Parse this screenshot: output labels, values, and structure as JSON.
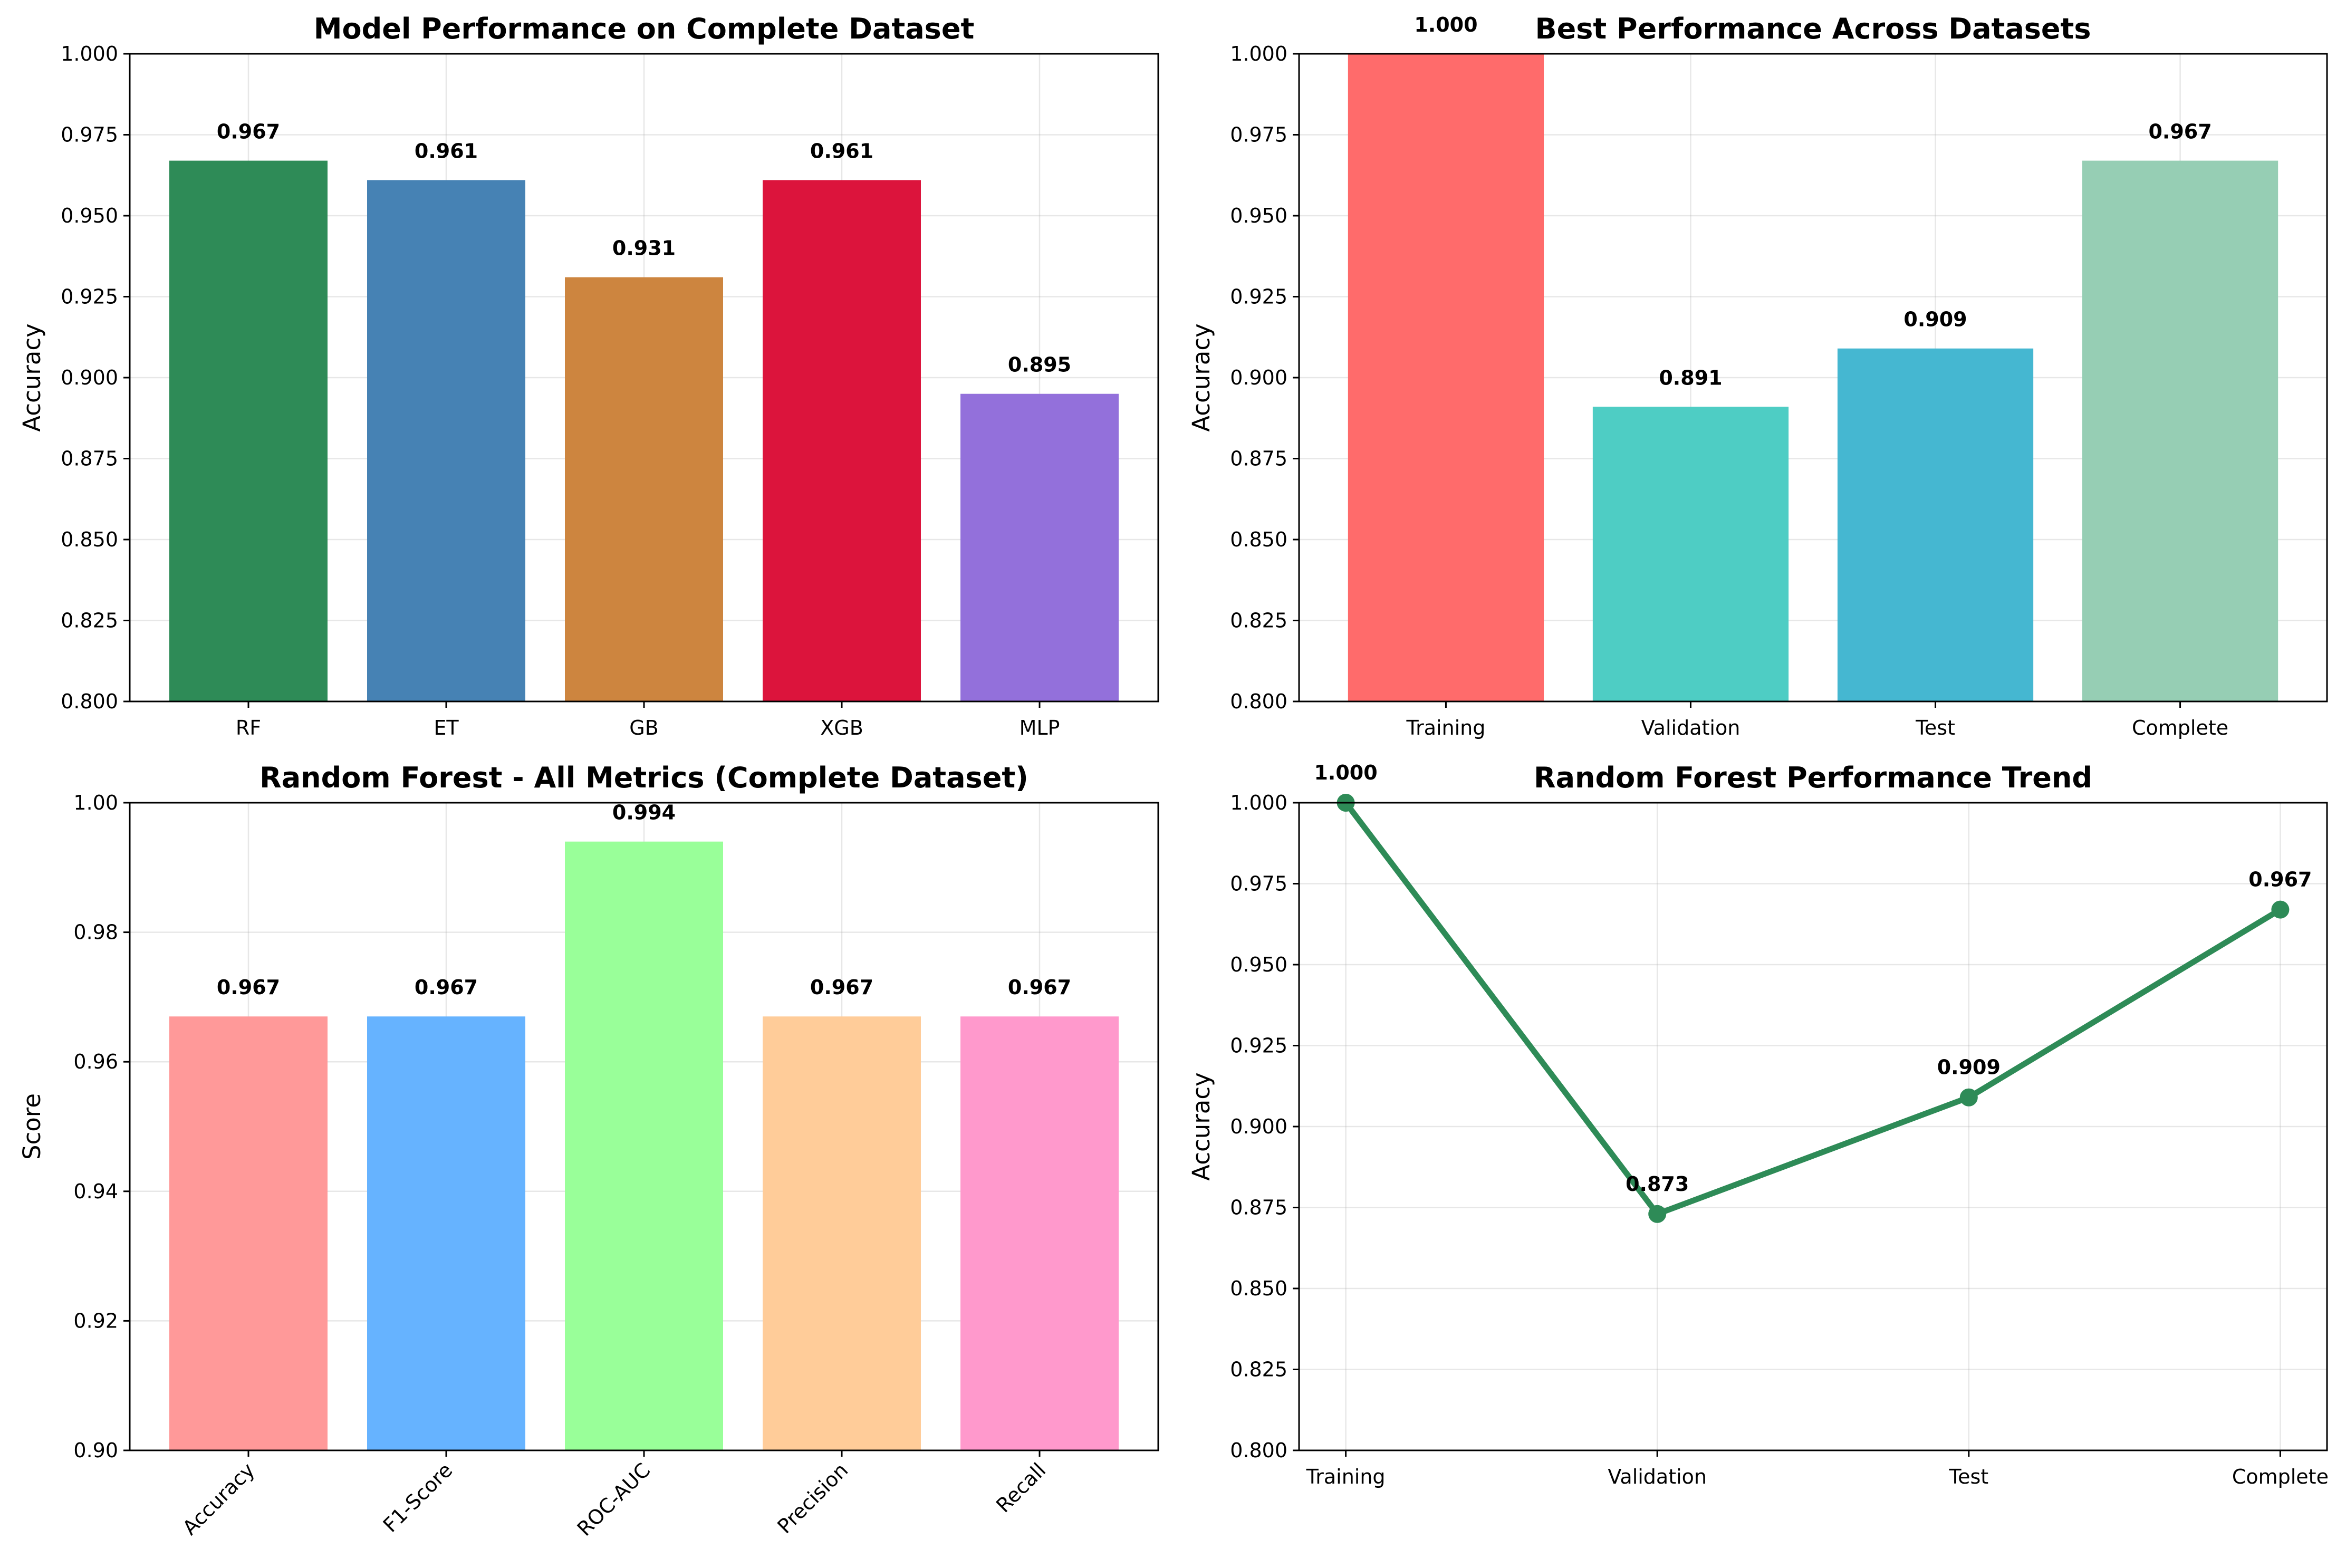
{
  "chart_data": [
    {
      "type": "bar",
      "title": "Model Performance on Complete Dataset",
      "xlabel": "",
      "ylabel": "Accuracy",
      "ylim": [
        0.8,
        1.0
      ],
      "yticks": [
        "0.800",
        "0.825",
        "0.850",
        "0.875",
        "0.900",
        "0.925",
        "0.950",
        "0.975",
        "1.000"
      ],
      "categories": [
        "RF",
        "ET",
        "GB",
        "XGB",
        "MLP"
      ],
      "values": [
        0.967,
        0.961,
        0.931,
        0.961,
        0.895
      ],
      "labels": [
        "0.967",
        "0.961",
        "0.931",
        "0.961",
        "0.895"
      ],
      "colors": [
        "#2e8b57",
        "#4682b4",
        "#cd853f",
        "#dc143c",
        "#9370db"
      ],
      "grid": true,
      "legend": "none"
    },
    {
      "type": "bar",
      "title": "Best Performance Across Datasets",
      "xlabel": "",
      "ylabel": "Accuracy",
      "ylim": [
        0.8,
        1.0
      ],
      "yticks": [
        "0.800",
        "0.825",
        "0.850",
        "0.875",
        "0.900",
        "0.925",
        "0.950",
        "0.975",
        "1.000"
      ],
      "categories": [
        "Training",
        "Validation",
        "Test",
        "Complete"
      ],
      "values": [
        1.0,
        0.891,
        0.909,
        0.967
      ],
      "labels": [
        "1.000",
        "0.891",
        "0.909",
        "0.967"
      ],
      "colors": [
        "#ff6b6b",
        "#4ecdc4",
        "#45b7d1",
        "#96ceb4"
      ],
      "grid": true,
      "legend": "none"
    },
    {
      "type": "bar",
      "title": "Random Forest - All Metrics (Complete Dataset)",
      "xlabel": "",
      "ylabel": "Score",
      "ylim": [
        0.9,
        1.0
      ],
      "yticks": [
        "0.90",
        "0.92",
        "0.94",
        "0.96",
        "0.98",
        "1.00"
      ],
      "categories": [
        "Accuracy",
        "F1-Score",
        "ROC-AUC",
        "Precision",
        "Recall"
      ],
      "values": [
        0.967,
        0.967,
        0.994,
        0.967,
        0.967
      ],
      "labels": [
        "0.967",
        "0.967",
        "0.994",
        "0.967",
        "0.967"
      ],
      "colors": [
        "#ff9999",
        "#66b3ff",
        "#99ff99",
        "#ffcc99",
        "#ff99cc"
      ],
      "rotate_xticks": 45,
      "grid": true,
      "legend": "none"
    },
    {
      "type": "line",
      "title": "Random Forest Performance Trend",
      "xlabel": "",
      "ylabel": "Accuracy",
      "ylim": [
        0.8,
        1.0
      ],
      "yticks": [
        "0.800",
        "0.825",
        "0.850",
        "0.875",
        "0.900",
        "0.925",
        "0.950",
        "0.975",
        "1.000"
      ],
      "categories": [
        "Training",
        "Validation",
        "Test",
        "Complete"
      ],
      "values": [
        1.0,
        0.873,
        0.909,
        0.967
      ],
      "labels": [
        "1.000",
        "0.873",
        "0.909",
        "0.967"
      ],
      "colors": [
        "#2e8b57"
      ],
      "grid": true,
      "legend": "none"
    }
  ]
}
